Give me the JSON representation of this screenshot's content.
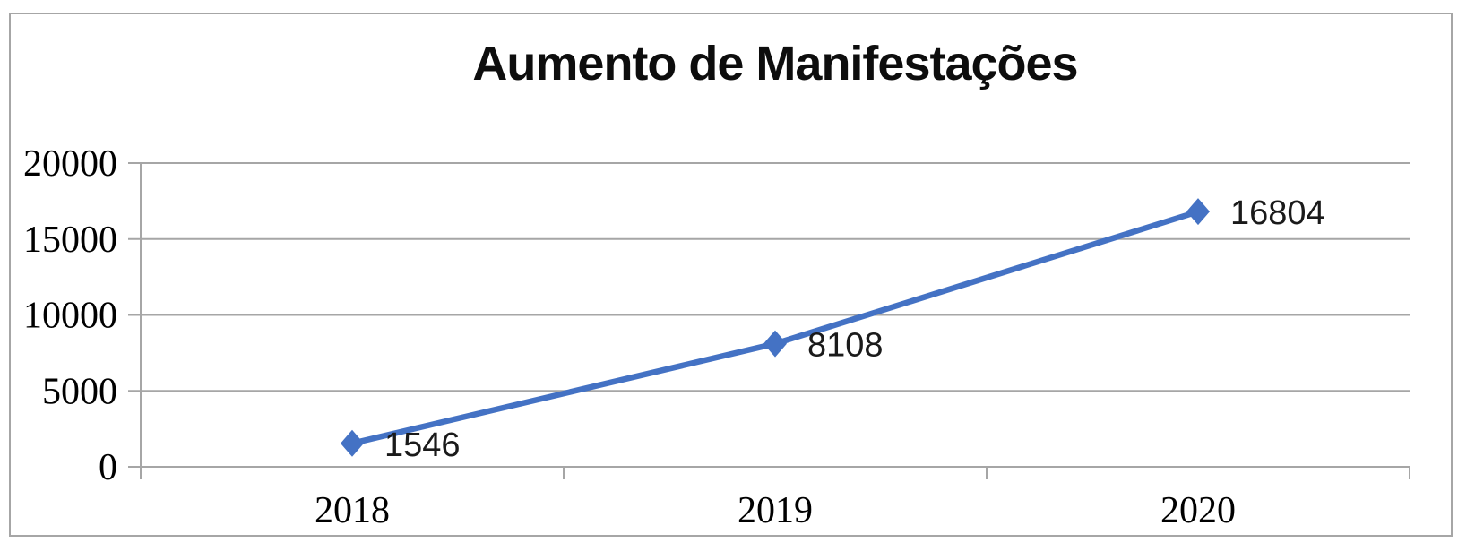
{
  "chart_data": {
    "type": "line",
    "title": "Aumento de Manifestações",
    "categories": [
      "2018",
      "2019",
      "2020"
    ],
    "values": [
      1546,
      8108,
      16804
    ],
    "data_labels": [
      "1546",
      "8108",
      "16804"
    ],
    "xlabel": "",
    "ylabel": "",
    "ylim": [
      0,
      20000
    ],
    "yticks": [
      0,
      5000,
      10000,
      15000,
      20000
    ],
    "ytick_labels": [
      "0",
      "5000",
      "10000",
      "15000",
      "20000"
    ],
    "grid": true,
    "legend": false,
    "marker": "diamond",
    "line_color": "#4472C4",
    "marker_color": "#4472C4",
    "gridline_color": "#a6a6a6",
    "axis_color": "#a6a6a6",
    "frame_color": "#a6a6a6",
    "label_color": "#000000"
  }
}
